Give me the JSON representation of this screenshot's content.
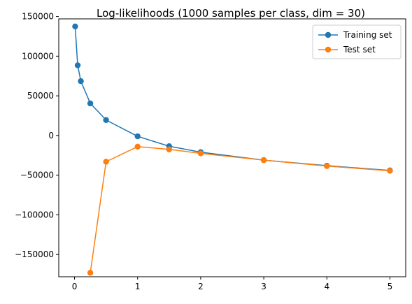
{
  "chart_data": {
    "type": "line",
    "title": "Log-likelihoods (1000 samples per class, dim = 30)",
    "xlabel": "",
    "ylabel": "",
    "xlim": [
      -0.25,
      5.25
    ],
    "ylim": [
      -178000,
      147000
    ],
    "xticks": [
      0,
      1,
      2,
      3,
      4,
      5
    ],
    "yticks": [
      150000,
      100000,
      50000,
      0,
      -50000,
      -100000,
      -150000
    ],
    "grid": false,
    "legend_position": "top-right",
    "series": [
      {
        "name": "Training set",
        "color": "#1f77b4",
        "marker": "circle",
        "x": [
          0.01,
          0.05,
          0.1,
          0.25,
          0.5,
          1,
          1.5,
          2,
          3,
          4,
          5
        ],
        "y": [
          137500,
          88500,
          68500,
          40500,
          19500,
          -1000,
          -13500,
          -21000,
          -31000,
          -38000,
          -44000
        ]
      },
      {
        "name": "Test set",
        "color": "#ff7f0e",
        "marker": "circle",
        "x": [
          0.25,
          0.5,
          1,
          1.5,
          2,
          3,
          4,
          5
        ],
        "y": [
          -173000,
          -33000,
          -14000,
          -17500,
          -22500,
          -31000,
          -38500,
          -44500
        ]
      }
    ]
  }
}
